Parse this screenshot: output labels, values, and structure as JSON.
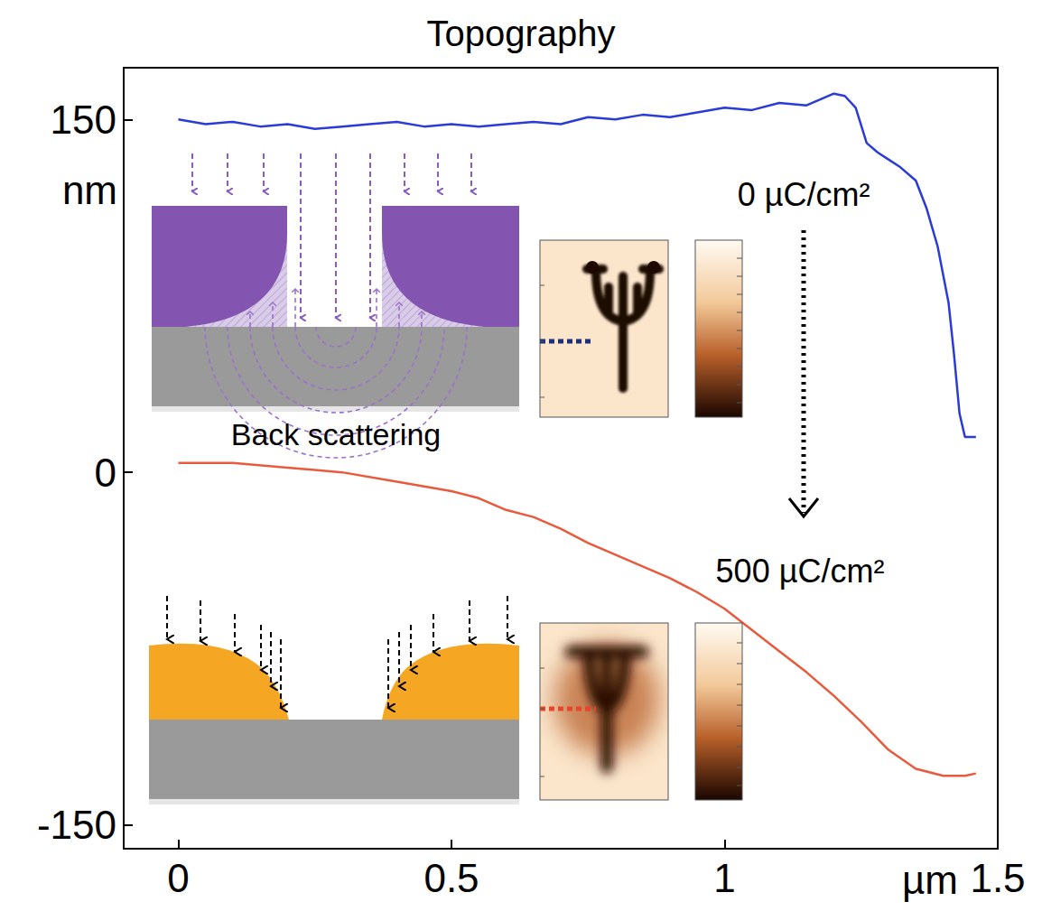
{
  "chart_data": {
    "type": "line",
    "title": "Topography",
    "x_label": "µm",
    "y_label": "nm",
    "xlim": [
      -0.1,
      1.5
    ],
    "ylim": [
      -160,
      172
    ],
    "xticks": [
      0,
      0.5,
      1,
      1.5
    ],
    "yticks": [
      -150,
      0,
      150
    ],
    "grid": false,
    "series": [
      {
        "name": "0 µC/cm²",
        "color": "#2a3bd8",
        "x": [
          0,
          0.05,
          0.1,
          0.15,
          0.2,
          0.25,
          0.3,
          0.35,
          0.4,
          0.45,
          0.5,
          0.55,
          0.6,
          0.65,
          0.7,
          0.75,
          0.8,
          0.85,
          0.9,
          0.95,
          1.0,
          1.05,
          1.1,
          1.15,
          1.2,
          1.22,
          1.24,
          1.26,
          1.28,
          1.3,
          1.32,
          1.35,
          1.37,
          1.39,
          1.41,
          1.42,
          1.43,
          1.44,
          1.45,
          1.46
        ],
        "values": [
          150,
          148,
          149,
          147,
          148,
          146,
          147,
          148,
          149,
          147,
          148,
          147,
          148,
          149,
          148,
          151,
          150,
          152,
          151,
          153,
          155,
          154,
          157,
          156,
          161,
          160,
          155,
          140,
          136,
          133,
          130,
          124,
          112,
          96,
          72,
          50,
          25,
          15,
          15,
          15
        ]
      },
      {
        "name": "500 µC/cm²",
        "color": "#e85a3c",
        "x": [
          0,
          0.1,
          0.2,
          0.25,
          0.3,
          0.4,
          0.5,
          0.55,
          0.6,
          0.65,
          0.7,
          0.75,
          0.8,
          0.85,
          0.9,
          0.95,
          1.0,
          1.05,
          1.1,
          1.15,
          1.2,
          1.25,
          1.3,
          1.35,
          1.4,
          1.44,
          1.46
        ],
        "values": [
          4,
          4,
          2,
          1,
          0,
          -4,
          -8,
          -11,
          -16,
          -19,
          -24,
          -30,
          -35,
          -40,
          -45,
          -51,
          -58,
          -67,
          -76,
          -85,
          -95,
          -106,
          -118,
          -126,
          -129,
          -129,
          -128
        ]
      }
    ],
    "annotations": [
      "Back scattering"
    ]
  }
}
